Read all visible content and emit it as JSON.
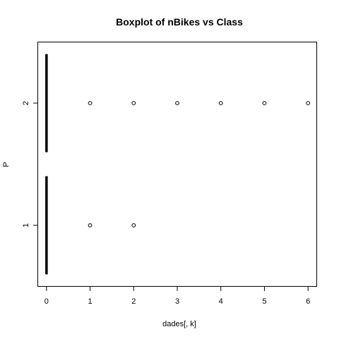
{
  "chart_data": {
    "type": "boxplot",
    "orientation": "horizontal",
    "title": "Boxplot of nBikes vs Class",
    "xlabel": "dades[, k]",
    "ylabel": "P",
    "xlim": [
      -0.2,
      6.2
    ],
    "x_ticks": [
      "0",
      "1",
      "2",
      "3",
      "4",
      "5",
      "6"
    ],
    "categories": [
      "1",
      "2"
    ],
    "boxes": [
      {
        "category": "1",
        "min": 0,
        "q1": 0,
        "median": 0,
        "q3": 0,
        "max": 0,
        "outliers": [
          1,
          2
        ]
      },
      {
        "category": "2",
        "min": 0,
        "q1": 0,
        "median": 0,
        "q3": 0,
        "max": 0,
        "outliers": [
          1,
          2,
          3,
          4,
          5,
          6
        ]
      }
    ],
    "grid": false,
    "colors": {
      "box": "#000000",
      "outlier": "#000000",
      "background": "#ffffff"
    }
  }
}
